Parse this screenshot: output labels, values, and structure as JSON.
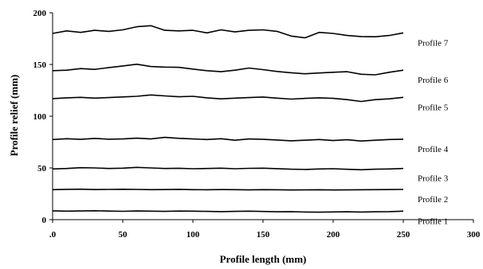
{
  "chart_data": {
    "type": "line",
    "title": "",
    "xlabel": "Profile length (mm)",
    "ylabel": "Profile relief (mm)",
    "xlim": [
      0,
      300
    ],
    "ylim": [
      0,
      200
    ],
    "x_ticks": [
      0,
      50,
      100,
      150,
      200,
      250,
      300
    ],
    "x_tick_labels": [
      ".0",
      "50",
      "100",
      "150",
      "200",
      "250",
      "300"
    ],
    "y_ticks": [
      0,
      50,
      100,
      150,
      200
    ],
    "y_tick_labels": [
      "0",
      "50",
      "100",
      "150",
      "200"
    ],
    "grid": false,
    "line_color": "#000000",
    "x": [
      0,
      10,
      20,
      30,
      40,
      50,
      60,
      70,
      80,
      90,
      100,
      110,
      120,
      130,
      140,
      150,
      160,
      170,
      180,
      190,
      200,
      210,
      220,
      230,
      240,
      250
    ],
    "series": [
      {
        "name": "Profile 1",
        "values": [
          8.5,
          8.2,
          8.4,
          8.6,
          8.3,
          8.1,
          8.4,
          8.2,
          8.0,
          8.3,
          8.2,
          8.0,
          7.8,
          8.0,
          8.2,
          7.9,
          7.6,
          7.8,
          7.4,
          7.2,
          7.5,
          7.6,
          7.4,
          7.6,
          7.8,
          8.2
        ]
      },
      {
        "name": "Profile 2",
        "values": [
          29.0,
          29.3,
          29.5,
          29.1,
          29.2,
          29.4,
          29.2,
          29.0,
          29.1,
          29.3,
          29.0,
          28.9,
          29.1,
          29.0,
          28.8,
          29.0,
          28.9,
          28.7,
          28.8,
          28.9,
          28.7,
          28.8,
          28.9,
          29.0,
          29.1,
          29.2
        ]
      },
      {
        "name": "Profile 3",
        "values": [
          49.0,
          49.5,
          50.2,
          50.0,
          49.5,
          49.8,
          50.5,
          50.0,
          49.5,
          49.7,
          49.2,
          49.5,
          49.8,
          49.2,
          49.6,
          49.8,
          49.3,
          48.8,
          48.5,
          49.0,
          49.2,
          48.7,
          48.2,
          48.8,
          49.0,
          49.5
        ]
      },
      {
        "name": "Profile 4",
        "values": [
          77.5,
          78.2,
          77.6,
          78.5,
          77.8,
          78.0,
          78.8,
          78.0,
          79.5,
          78.6,
          78.0,
          77.5,
          78.2,
          76.8,
          78.0,
          77.6,
          77.0,
          76.2,
          76.8,
          77.5,
          76.5,
          77.2,
          76.0,
          76.8,
          77.5,
          77.8
        ]
      },
      {
        "name": "Profile 5",
        "values": [
          117.0,
          117.8,
          118.2,
          117.5,
          118.0,
          118.6,
          119.2,
          120.5,
          119.6,
          118.8,
          119.2,
          117.8,
          116.8,
          117.5,
          118.0,
          118.5,
          117.5,
          116.5,
          117.2,
          117.8,
          117.2,
          116.0,
          114.2,
          116.0,
          116.8,
          118.2
        ]
      },
      {
        "name": "Profile 6",
        "values": [
          144.0,
          144.5,
          146.0,
          145.2,
          147.0,
          148.5,
          150.2,
          148.0,
          147.5,
          147.2,
          145.5,
          144.0,
          143.0,
          144.5,
          146.5,
          145.0,
          143.2,
          142.0,
          141.0,
          141.8,
          142.5,
          143.0,
          140.5,
          140.0,
          142.5,
          144.5
        ]
      },
      {
        "name": "Profile 7",
        "values": [
          180.0,
          182.5,
          181.0,
          183.0,
          182.0,
          183.5,
          186.5,
          187.5,
          183.0,
          182.5,
          183.0,
          180.5,
          183.5,
          181.5,
          183.0,
          183.5,
          182.0,
          177.5,
          175.8,
          181.0,
          180.0,
          178.0,
          177.0,
          176.8,
          178.0,
          180.5
        ]
      }
    ]
  }
}
